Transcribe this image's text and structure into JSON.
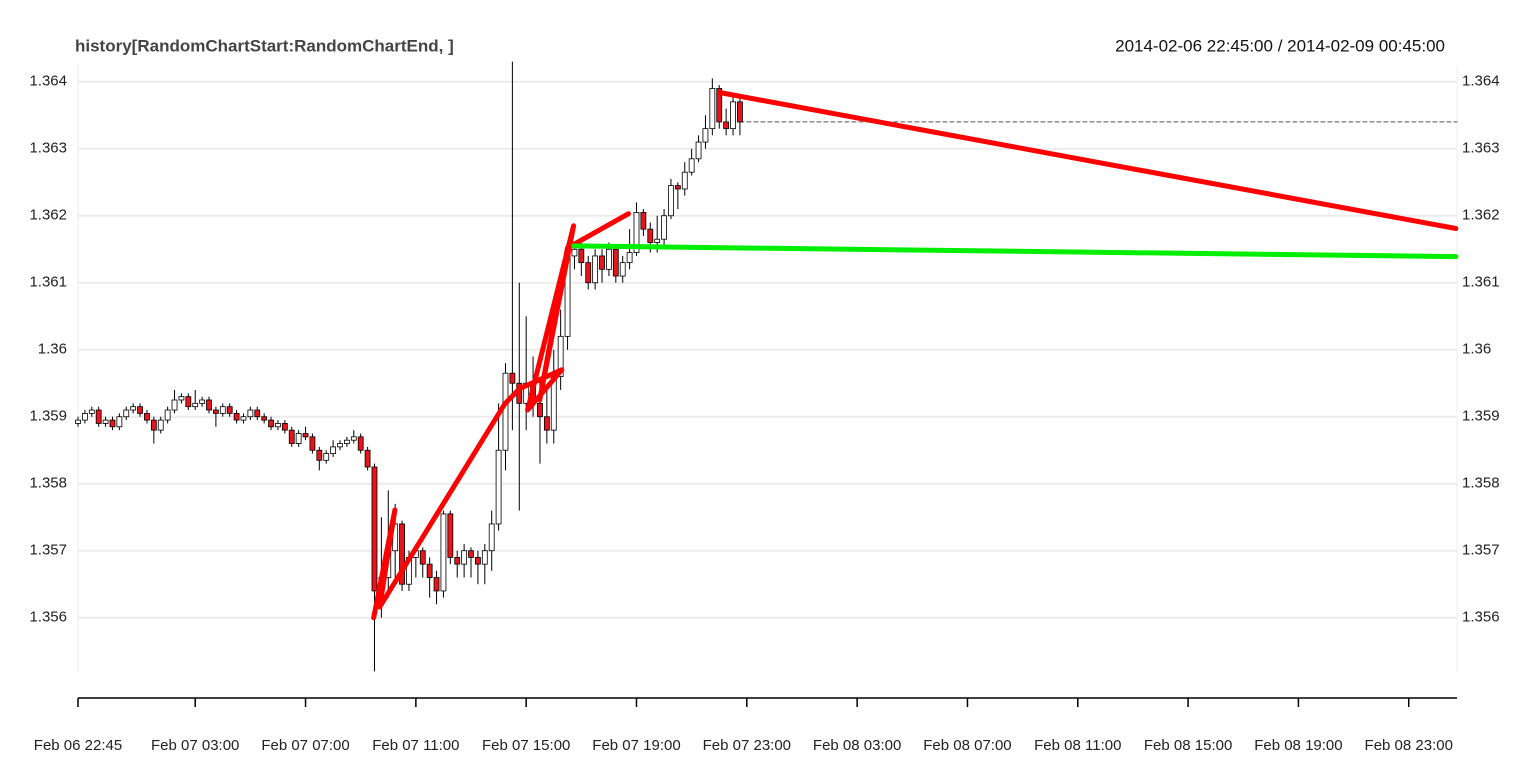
{
  "chart_data": {
    "type": "candlestick",
    "title": "history[RandomChartStart:RandomChartEnd, ]",
    "subtitle": "2014-02-06 22:45:00 / 2014-02-09 00:45:00",
    "up_color": "#ffffff",
    "down_color": "#e8141b",
    "grid": true,
    "xlim": [
      0,
      50
    ],
    "ylim": [
      1.35519,
      1.36425
    ],
    "yticks": [
      1.356,
      1.357,
      1.358,
      1.359,
      1.36,
      1.361,
      1.362,
      1.363,
      1.364
    ],
    "xticks": [
      {
        "value": 0,
        "label": "Feb 06 22:45"
      },
      {
        "value": 4.25,
        "label": "Feb 07 03:00"
      },
      {
        "value": 8.25,
        "label": "Feb 07 07:00"
      },
      {
        "value": 12.25,
        "label": "Feb 07 11:00"
      },
      {
        "value": 16.25,
        "label": "Feb 07 15:00"
      },
      {
        "value": 20.25,
        "label": "Feb 07 19:00"
      },
      {
        "value": 24.25,
        "label": "Feb 07 23:00"
      },
      {
        "value": 28.25,
        "label": "Feb 08 03:00"
      },
      {
        "value": 32.25,
        "label": "Feb 08 07:00"
      },
      {
        "value": 36.25,
        "label": "Feb 08 11:00"
      },
      {
        "value": 40.25,
        "label": "Feb 08 15:00"
      },
      {
        "value": 44.25,
        "label": "Feb 08 19:00"
      },
      {
        "value": 48.25,
        "label": "Feb 08 23:00"
      }
    ],
    "x": [
      0,
      0.25,
      0.5,
      0.75,
      1,
      1.25,
      1.5,
      1.75,
      2,
      2.25,
      2.5,
      2.75,
      3,
      3.25,
      3.5,
      3.75,
      4,
      4.25,
      4.5,
      4.75,
      5,
      5.25,
      5.5,
      5.75,
      6,
      6.25,
      6.5,
      6.75,
      7,
      7.25,
      7.5,
      7.75,
      8,
      8.25,
      8.5,
      8.75,
      9,
      9.25,
      9.5,
      9.75,
      10,
      10.25,
      10.5,
      10.75,
      11,
      11.25,
      11.5,
      11.75,
      12,
      12.25,
      12.5,
      12.75,
      13,
      13.25,
      13.5,
      13.75,
      14,
      14.25,
      14.5,
      14.75,
      15,
      15.25,
      15.5,
      15.75,
      16,
      16.25,
      16.5,
      16.75,
      17,
      17.25,
      17.5,
      17.75,
      18,
      18.25,
      18.5,
      18.75,
      19,
      19.25,
      19.5,
      19.75,
      20,
      20.25,
      20.5,
      20.75,
      21,
      21.25,
      21.5,
      21.75,
      22,
      22.25,
      22.5,
      22.75,
      23,
      23.25,
      23.5,
      23.75,
      24
    ],
    "candles": [
      [
        1.3589,
        1.359,
        1.35885,
        1.35895
      ],
      [
        1.35895,
        1.3591,
        1.3589,
        1.35905
      ],
      [
        1.35905,
        1.35915,
        1.359,
        1.3591
      ],
      [
        1.3591,
        1.35915,
        1.35885,
        1.3589
      ],
      [
        1.3589,
        1.359,
        1.35885,
        1.35895
      ],
      [
        1.35895,
        1.359,
        1.3588,
        1.35885
      ],
      [
        1.35885,
        1.35905,
        1.3588,
        1.359
      ],
      [
        1.359,
        1.35915,
        1.35895,
        1.3591
      ],
      [
        1.3591,
        1.3592,
        1.35905,
        1.35915
      ],
      [
        1.35915,
        1.3592,
        1.359,
        1.35905
      ],
      [
        1.35905,
        1.3591,
        1.3589,
        1.35895
      ],
      [
        1.35895,
        1.359,
        1.3586,
        1.3588
      ],
      [
        1.3588,
        1.359,
        1.35875,
        1.35895
      ],
      [
        1.35895,
        1.35915,
        1.3589,
        1.3591
      ],
      [
        1.3591,
        1.3594,
        1.35905,
        1.35925
      ],
      [
        1.35925,
        1.35935,
        1.3592,
        1.3593
      ],
      [
        1.3593,
        1.35935,
        1.3591,
        1.35915
      ],
      [
        1.35915,
        1.3594,
        1.3591,
        1.3592
      ],
      [
        1.3592,
        1.3593,
        1.35915,
        1.35925
      ],
      [
        1.35925,
        1.3593,
        1.35905,
        1.3591
      ],
      [
        1.3591,
        1.35915,
        1.35885,
        1.35905
      ],
      [
        1.35905,
        1.3592,
        1.359,
        1.35915
      ],
      [
        1.35915,
        1.3592,
        1.359,
        1.35905
      ],
      [
        1.35905,
        1.3591,
        1.3589,
        1.35895
      ],
      [
        1.35895,
        1.35905,
        1.3589,
        1.359
      ],
      [
        1.359,
        1.35915,
        1.35895,
        1.3591
      ],
      [
        1.3591,
        1.35915,
        1.35895,
        1.359
      ],
      [
        1.359,
        1.35905,
        1.3589,
        1.35895
      ],
      [
        1.35895,
        1.359,
        1.3588,
        1.35885
      ],
      [
        1.35885,
        1.35895,
        1.3588,
        1.3589
      ],
      [
        1.3589,
        1.35895,
        1.35875,
        1.3588
      ],
      [
        1.3588,
        1.35885,
        1.35855,
        1.3586
      ],
      [
        1.3586,
        1.3588,
        1.35855,
        1.35875
      ],
      [
        1.35875,
        1.35885,
        1.35865,
        1.3587
      ],
      [
        1.3587,
        1.35875,
        1.35845,
        1.3585
      ],
      [
        1.3585,
        1.35855,
        1.3582,
        1.35835
      ],
      [
        1.35835,
        1.3585,
        1.3583,
        1.35845
      ],
      [
        1.35845,
        1.35865,
        1.3584,
        1.35855
      ],
      [
        1.35855,
        1.35865,
        1.3585,
        1.3586
      ],
      [
        1.3586,
        1.3587,
        1.35855,
        1.35865
      ],
      [
        1.35865,
        1.3588,
        1.3586,
        1.3587
      ],
      [
        1.3587,
        1.35875,
        1.35845,
        1.3585
      ],
      [
        1.3585,
        1.35855,
        1.3582,
        1.35825
      ],
      [
        1.35825,
        1.3583,
        1.3552,
        1.3564
      ],
      [
        1.3564,
        1.3575,
        1.356,
        1.3566
      ],
      [
        1.3566,
        1.3579,
        1.3563,
        1.357
      ],
      [
        1.357,
        1.3577,
        1.3566,
        1.3574
      ],
      [
        1.3574,
        1.35745,
        1.3564,
        1.3565
      ],
      [
        1.3565,
        1.357,
        1.3564,
        1.3569
      ],
      [
        1.3569,
        1.3571,
        1.3566,
        1.357
      ],
      [
        1.357,
        1.35705,
        1.3566,
        1.3568
      ],
      [
        1.3568,
        1.3569,
        1.3563,
        1.3566
      ],
      [
        1.3566,
        1.3567,
        1.3562,
        1.3564
      ],
      [
        1.3564,
        1.3576,
        1.3563,
        1.35755
      ],
      [
        1.35755,
        1.3576,
        1.3568,
        1.3569
      ],
      [
        1.3569,
        1.357,
        1.3566,
        1.3568
      ],
      [
        1.3568,
        1.3571,
        1.3566,
        1.357
      ],
      [
        1.357,
        1.35705,
        1.3566,
        1.3569
      ],
      [
        1.3569,
        1.357,
        1.3565,
        1.3568
      ],
      [
        1.3568,
        1.3571,
        1.3565,
        1.357
      ],
      [
        1.357,
        1.3576,
        1.3567,
        1.3574
      ],
      [
        1.3574,
        1.3592,
        1.3573,
        1.3585
      ],
      [
        1.3585,
        1.3598,
        1.3582,
        1.35965
      ],
      [
        1.35965,
        1.3643,
        1.3588,
        1.3595
      ],
      [
        1.3595,
        1.361,
        1.3576,
        1.3592
      ],
      [
        1.3592,
        1.3605,
        1.3588,
        1.3595
      ],
      [
        1.3595,
        1.3599,
        1.359,
        1.3592
      ],
      [
        1.3592,
        1.3596,
        1.3583,
        1.359
      ],
      [
        1.359,
        1.3594,
        1.3586,
        1.3588
      ],
      [
        1.3588,
        1.36,
        1.3586,
        1.3596
      ],
      [
        1.3596,
        1.3606,
        1.3594,
        1.3602
      ],
      [
        1.3602,
        1.3616,
        1.36,
        1.3614
      ],
      [
        1.3614,
        1.3616,
        1.3612,
        1.3615
      ],
      [
        1.3615,
        1.3616,
        1.3611,
        1.3613
      ],
      [
        1.3613,
        1.3614,
        1.3609,
        1.361
      ],
      [
        1.361,
        1.3615,
        1.3609,
        1.3614
      ],
      [
        1.3614,
        1.3615,
        1.361,
        1.3612
      ],
      [
        1.3612,
        1.3616,
        1.3611,
        1.3615
      ],
      [
        1.3615,
        1.36155,
        1.361,
        1.3611
      ],
      [
        1.3611,
        1.3614,
        1.361,
        1.3613
      ],
      [
        1.3613,
        1.3618,
        1.3612,
        1.36145
      ],
      [
        1.36145,
        1.3622,
        1.3614,
        1.36205
      ],
      [
        1.36205,
        1.3621,
        1.3617,
        1.3618
      ],
      [
        1.3618,
        1.3619,
        1.36145,
        1.3616
      ],
      [
        1.3616,
        1.362,
        1.36145,
        1.36165
      ],
      [
        1.36165,
        1.3621,
        1.36155,
        1.362
      ],
      [
        1.362,
        1.36255,
        1.36195,
        1.36245
      ],
      [
        1.36245,
        1.3625,
        1.3621,
        1.3624
      ],
      [
        1.3624,
        1.3628,
        1.3623,
        1.36265
      ],
      [
        1.36265,
        1.363,
        1.3626,
        1.36285
      ],
      [
        1.36285,
        1.3632,
        1.3628,
        1.3631
      ],
      [
        1.3631,
        1.3635,
        1.363,
        1.3633
      ],
      [
        1.3633,
        1.36405,
        1.3632,
        1.3639
      ],
      [
        1.3639,
        1.36395,
        1.3633,
        1.3634
      ],
      [
        1.3634,
        1.3636,
        1.3632,
        1.3633
      ],
      [
        1.3633,
        1.3638,
        1.3632,
        1.3637
      ],
      [
        1.3637,
        1.36375,
        1.3632,
        1.3634
      ]
    ],
    "series": [
      {
        "color": "#ff0000",
        "width": 5,
        "dashed": false,
        "x": [
          10.72,
          11.49,
          10.94,
          15.47,
          16.01,
          17.54,
          16.3,
          17.97,
          16.74,
          17.75,
          19.96,
          null,
          23.26,
          49.96
        ],
        "values": [
          1.356,
          1.35761,
          1.35616,
          1.35919,
          1.35942,
          1.3597,
          1.3591,
          1.36185,
          1.35925,
          1.36152,
          1.36203,
          null,
          1.36384,
          1.36181
        ]
      },
      {
        "color": "#00ee00",
        "width": 5,
        "dashed": false,
        "x": [
          17.97,
          49.96
        ],
        "values": [
          1.36155,
          1.36139
        ]
      },
      {
        "color": "#555555",
        "width": 1,
        "dashed": true,
        "x": [
          24,
          50
        ],
        "values": [
          1.3634,
          1.3634
        ]
      }
    ]
  }
}
